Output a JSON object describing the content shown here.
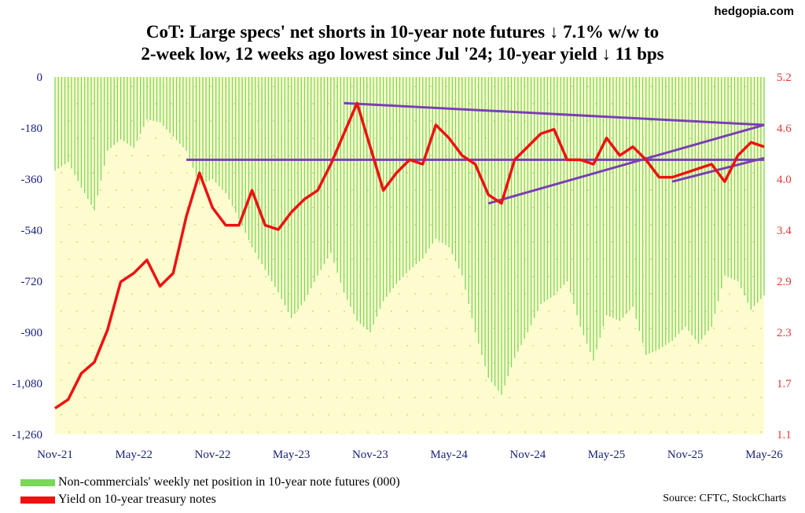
{
  "brand": "hedgopia.com",
  "title_line1": "CoT: Large specs' net shorts in 10-year note futures ↓ 7.1% w/w to",
  "title_line2": "2-week low, 12 weeks ago lowest since Jul '24; 10-year yield ↓ 11 bps",
  "source": "Source: CFTC, StockCharts",
  "colors": {
    "net_position": "#7cd65a",
    "yield": "#ee1111",
    "trendline": "#7a3fb5",
    "plot_bg": "#fdfccf",
    "left_axis_text": "#1a237e",
    "right_axis_text": "#e53935"
  },
  "chart_data": {
    "type": "bar+line",
    "x_tick_labels": [
      "Nov-21",
      "May-22",
      "Nov-22",
      "May-23",
      "Nov-23",
      "May-24",
      "Nov-24",
      "May-25",
      "Nov-25",
      "May-26"
    ],
    "x_range": [
      "2021-11",
      "2026-05"
    ],
    "left_axis": {
      "ticks": [
        "0",
        "-180",
        "-360",
        "-540",
        "-720",
        "-900",
        "-1,080",
        "-1,260"
      ],
      "ylim": [
        -1260,
        0
      ]
    },
    "right_axis": {
      "ticks": [
        "5.2",
        "4.6",
        "4.0",
        "3.4",
        "2.9",
        "2.3",
        "1.7",
        "1.1"
      ],
      "ylim": [
        1.1,
        5.2
      ]
    },
    "series": [
      {
        "name": "Non-commercials' weekly net position in 10-year note futures (000)",
        "axis": "left",
        "type": "bar",
        "points": [
          [
            "2021-11",
            -330
          ],
          [
            "2021-12",
            -300
          ],
          [
            "2022-01",
            -390
          ],
          [
            "2022-02",
            -470
          ],
          [
            "2022-03",
            -260
          ],
          [
            "2022-04",
            -220
          ],
          [
            "2022-05",
            -250
          ],
          [
            "2022-06",
            -150
          ],
          [
            "2022-07",
            -160
          ],
          [
            "2022-08",
            -210
          ],
          [
            "2022-09",
            -260
          ],
          [
            "2022-10",
            -380
          ],
          [
            "2022-11",
            -360
          ],
          [
            "2022-12",
            -410
          ],
          [
            "2023-01",
            -500
          ],
          [
            "2023-02",
            -600
          ],
          [
            "2023-03",
            -680
          ],
          [
            "2023-04",
            -760
          ],
          [
            "2023-05",
            -850
          ],
          [
            "2023-06",
            -790
          ],
          [
            "2023-07",
            -700
          ],
          [
            "2023-08",
            -620
          ],
          [
            "2023-09",
            -760
          ],
          [
            "2023-10",
            -860
          ],
          [
            "2023-11",
            -900
          ],
          [
            "2023-12",
            -790
          ],
          [
            "2024-01",
            -730
          ],
          [
            "2024-02",
            -680
          ],
          [
            "2024-03",
            -640
          ],
          [
            "2024-04",
            -570
          ],
          [
            "2024-05",
            -600
          ],
          [
            "2024-06",
            -700
          ],
          [
            "2024-07",
            -900
          ],
          [
            "2024-08",
            -1060
          ],
          [
            "2024-09",
            -1120
          ],
          [
            "2024-10",
            -990
          ],
          [
            "2024-11",
            -900
          ],
          [
            "2024-12",
            -800
          ],
          [
            "2025-01",
            -770
          ],
          [
            "2025-02",
            -720
          ],
          [
            "2025-03",
            -880
          ],
          [
            "2025-04",
            -1000
          ],
          [
            "2025-05",
            -840
          ],
          [
            "2025-06",
            -860
          ],
          [
            "2025-07",
            -810
          ],
          [
            "2025-08",
            -980
          ],
          [
            "2025-09",
            -960
          ],
          [
            "2025-10",
            -930
          ],
          [
            "2025-11",
            -880
          ],
          [
            "2025-12",
            -940
          ],
          [
            "2026-01",
            -880
          ],
          [
            "2026-02",
            -700
          ],
          [
            "2026-03",
            -720
          ],
          [
            "2026-04",
            -820
          ],
          [
            "2026-05",
            -770
          ]
        ]
      },
      {
        "name": "Yield on 10-year treasury notes",
        "axis": "right",
        "type": "line",
        "points": [
          [
            "2021-11",
            1.4
          ],
          [
            "2021-12",
            1.5
          ],
          [
            "2022-01",
            1.8
          ],
          [
            "2022-02",
            1.93
          ],
          [
            "2022-03",
            2.3
          ],
          [
            "2022-04",
            2.85
          ],
          [
            "2022-05",
            2.95
          ],
          [
            "2022-06",
            3.1
          ],
          [
            "2022-07",
            2.8
          ],
          [
            "2022-08",
            2.95
          ],
          [
            "2022-09",
            3.6
          ],
          [
            "2022-10",
            4.1
          ],
          [
            "2022-11",
            3.7
          ],
          [
            "2022-12",
            3.5
          ],
          [
            "2023-01",
            3.5
          ],
          [
            "2023-02",
            3.9
          ],
          [
            "2023-03",
            3.5
          ],
          [
            "2023-04",
            3.45
          ],
          [
            "2023-05",
            3.65
          ],
          [
            "2023-06",
            3.8
          ],
          [
            "2023-07",
            3.9
          ],
          [
            "2023-08",
            4.2
          ],
          [
            "2023-09",
            4.55
          ],
          [
            "2023-10",
            4.9
          ],
          [
            "2023-11",
            4.4
          ],
          [
            "2023-12",
            3.9
          ],
          [
            "2024-01",
            4.1
          ],
          [
            "2024-02",
            4.25
          ],
          [
            "2024-03",
            4.2
          ],
          [
            "2024-04",
            4.65
          ],
          [
            "2024-05",
            4.5
          ],
          [
            "2024-06",
            4.3
          ],
          [
            "2024-07",
            4.2
          ],
          [
            "2024-08",
            3.85
          ],
          [
            "2024-09",
            3.75
          ],
          [
            "2024-10",
            4.25
          ],
          [
            "2024-11",
            4.4
          ],
          [
            "2024-12",
            4.55
          ],
          [
            "2025-01",
            4.6
          ],
          [
            "2025-02",
            4.25
          ],
          [
            "2025-03",
            4.25
          ],
          [
            "2025-04",
            4.2
          ],
          [
            "2025-05",
            4.5
          ],
          [
            "2025-06",
            4.3
          ],
          [
            "2025-07",
            4.4
          ],
          [
            "2025-08",
            4.25
          ],
          [
            "2025-09",
            4.05
          ],
          [
            "2025-10",
            4.05
          ],
          [
            "2025-11",
            4.1
          ],
          [
            "2025-12",
            4.15
          ],
          [
            "2026-01",
            4.2
          ],
          [
            "2026-02",
            4.0
          ],
          [
            "2026-03",
            4.3
          ],
          [
            "2026-04",
            4.45
          ],
          [
            "2026-05",
            4.4
          ]
        ]
      }
    ],
    "trendlines": [
      {
        "from": [
          "2023-09",
          4.9
        ],
        "to": [
          "2026-05",
          4.65
        ]
      },
      {
        "from": [
          "2022-09",
          4.25
        ],
        "to": [
          "2026-05",
          4.25
        ]
      },
      {
        "from": [
          "2024-08",
          3.75
        ],
        "to": [
          "2026-05",
          4.65
        ]
      },
      {
        "from": [
          "2025-10",
          4.0
        ],
        "to": [
          "2026-05",
          4.27
        ]
      }
    ],
    "grid": "dotted",
    "legend_position": "bottom-left"
  }
}
